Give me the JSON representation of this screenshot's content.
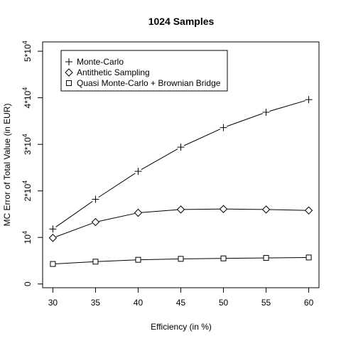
{
  "chart_data": {
    "type": "line",
    "title": "1024 Samples",
    "xlabel": "Efficiency (in %)",
    "ylabel": "MC Error of Total Value (in EUR)",
    "x": [
      30,
      35,
      40,
      45,
      50,
      55,
      60
    ],
    "xlim": [
      28.8,
      61.2
    ],
    "ylim": [
      -800,
      52000
    ],
    "x_ticks": [
      30,
      35,
      40,
      45,
      50,
      55,
      60
    ],
    "y_ticks": [
      {
        "value": 0,
        "mantissa": "0",
        "exponent": ""
      },
      {
        "value": 10000,
        "mantissa": "10",
        "exponent": "4"
      },
      {
        "value": 20000,
        "mantissa": "2*10",
        "exponent": "4"
      },
      {
        "value": 30000,
        "mantissa": "3*10",
        "exponent": "4"
      },
      {
        "value": 40000,
        "mantissa": "4*10",
        "exponent": "4"
      },
      {
        "value": 50000,
        "mantissa": "5*10",
        "exponent": "4"
      }
    ],
    "legend_position": "top-left",
    "series": [
      {
        "name": "Monte-Carlo",
        "marker": "plus",
        "values": [
          11800,
          18200,
          24200,
          29400,
          33600,
          36900,
          39600
        ]
      },
      {
        "name": "Antithetic Sampling",
        "marker": "diamond",
        "values": [
          9900,
          13300,
          15300,
          16000,
          16100,
          16000,
          15800
        ]
      },
      {
        "name": "Quasi Monte-Carlo + Brownian Bridge",
        "marker": "square",
        "values": [
          4300,
          4800,
          5200,
          5400,
          5500,
          5600,
          5700
        ]
      }
    ]
  }
}
